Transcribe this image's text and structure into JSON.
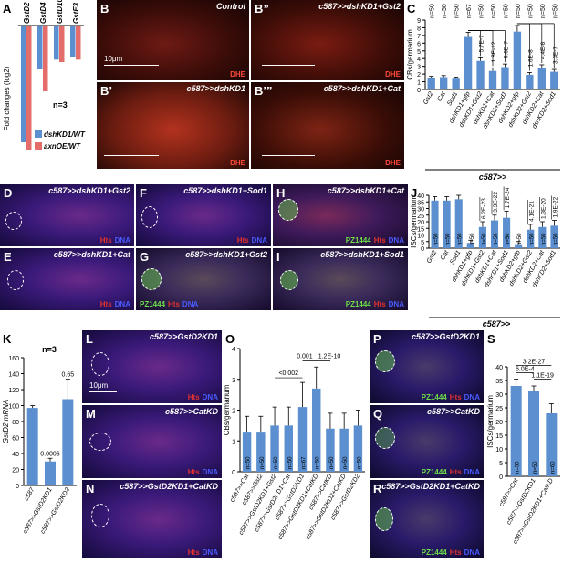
{
  "panel_letters": {
    "A": "A",
    "B": "B",
    "B2": "B’",
    "B3": "B”",
    "B4": "B’”",
    "C": "C",
    "D": "D",
    "E": "E",
    "F": "F",
    "G": "G",
    "H": "H",
    "I": "I",
    "J": "J",
    "K": "K",
    "L": "L",
    "M": "M",
    "N": "N",
    "O": "O",
    "P": "P",
    "Q": "Q",
    "R": "R",
    "S": "S"
  },
  "stain_labels": {
    "dhe": "DHE",
    "hts": "Hts",
    "dna": "DNA",
    "pz": "PZ1444"
  },
  "scale_bar": "10μm",
  "micrographs": {
    "B": "Control",
    "B2": "c587>>dshKD1",
    "B3": "c587>>dshKD1+Gst2",
    "B4": "c587>>dshKD1+Cat",
    "D": "c587>>dshKD1+Gst2",
    "E": "c587>>dshKD1+Cat",
    "F": "c587>>dshKD1+Sod1",
    "G": "c587>>dshKD1+Gst2",
    "H": "c587>>dshKD1+Cat",
    "I": "c587>>dshKD1+Sod1",
    "L": "c587>>GstD2KD1",
    "M": "c587>>CatKD",
    "N": "c587>>GstD2KD1+CatKD",
    "P": "c587>>GstD2KD1",
    "Q": "c587>>CatKD",
    "R": "c587>>GstD2KD1+CatKD"
  },
  "colors": {
    "blue_bar": "#5b8fcf",
    "red_bar": "#e46c6a",
    "hts_red": "#e03030",
    "dna_blue": "#4a5bff",
    "pz_green": "#6dde4a"
  },
  "chart_data": [
    {
      "id": "A",
      "type": "bar",
      "categories": [
        "GstD2",
        "GstD4",
        "GstD10",
        "GstE3"
      ],
      "series": [
        {
          "name": "dshKD1/WT",
          "values": [
            -4.8,
            -1.8,
            -1.4,
            -1.3
          ]
        },
        {
          "name": "axnOE/WT",
          "values": [
            -5.1,
            -2.7,
            -1.5,
            -1.4
          ]
        }
      ],
      "ylabel": "Fold changes (log2)",
      "ylim": [
        -6,
        0
      ],
      "annotation": "n=3",
      "legend": "bottom-right"
    },
    {
      "id": "C",
      "type": "bar",
      "categories": [
        "Gst2",
        "Cat",
        "Sod1",
        "dshKD1+gfp",
        "dshKD1+Gst2",
        "dshKD1+Cat",
        "dshKD1+Sod1",
        "dshKD2+gfp",
        "dshKD2+Gst2",
        "dshKD2+Cat",
        "dshKD2+Sod1"
      ],
      "values": [
        1.5,
        1.6,
        1.4,
        6.8,
        3.7,
        2.4,
        2.9,
        7.5,
        1.9,
        2.8,
        2.3
      ],
      "errors": [
        0.2,
        0.2,
        0.2,
        0.6,
        0.4,
        0.4,
        0.4,
        0.8,
        0.3,
        0.4,
        0.3
      ],
      "n_labels": [
        "n=50",
        "n=50",
        "n=50",
        "n=67",
        "n=50",
        "n=50",
        "n=50",
        "n=50",
        "n=50",
        "n=50",
        "n=50"
      ],
      "pvalues": [
        "5.7E-7",
        "1.8E-12",
        "5.6E-7",
        "1.6E-8",
        "4.4E-6",
        "3.3E-7"
      ],
      "ylabel": "CBs/germarium",
      "xlabel": "c587>>",
      "ylim": [
        0,
        9
      ],
      "yticks": [
        "0",
        "1",
        "2",
        "3",
        "4",
        "5",
        "6",
        "7",
        "8",
        "9"
      ]
    },
    {
      "id": "J",
      "type": "bar",
      "categories": [
        "Gst2",
        "Cat",
        "Sod1",
        "dshKD1+gfp",
        "dshKD1+Gst2",
        "dshKD1+Cat",
        "dshKD1+Sod1",
        "dshKD2+gfp",
        "dshKD2+Gst2",
        "dshKD2+Cat",
        "dshKD2+Sod1"
      ],
      "values": [
        36,
        36,
        37,
        4,
        16,
        21,
        23,
        3,
        14,
        16,
        17
      ],
      "errors": [
        3,
        3,
        3,
        2,
        4,
        4,
        5,
        2,
        4,
        4,
        4
      ],
      "n_labels": [
        "n=50",
        "n=50",
        "n=50",
        "n=50",
        "n=50",
        "n=50",
        "n=50",
        "n=50",
        "n=50",
        "n=50",
        "n=50"
      ],
      "pvalues": [
        "6.2E-23",
        "3.3E-22",
        "1.7E-24",
        "4.1E-21",
        "1.3E-20",
        "1.9E-22"
      ],
      "ylabel": "ISCs/germarium",
      "xlabel": "c587>>",
      "ylim": [
        0,
        40
      ],
      "yticks": [
        "0",
        "5",
        "10",
        "15",
        "20",
        "25",
        "30",
        "35",
        "40"
      ]
    },
    {
      "id": "K",
      "type": "bar",
      "categories": [
        "c587",
        "c587>>GstD2KD1",
        "c587>>GstD2KD2"
      ],
      "values": [
        97,
        30,
        108
      ],
      "errors": [
        3,
        4,
        25
      ],
      "bar_labels": [
        "",
        "0.0006",
        "0.65"
      ],
      "ylabel": "GstD2 mRNA",
      "annotation": "n=3",
      "ylim": [
        0,
        160
      ],
      "yticks": [
        "0",
        "20",
        "40",
        "60",
        "80",
        "100",
        "120",
        "140",
        "160"
      ]
    },
    {
      "id": "O",
      "type": "bar",
      "categories": [
        "c587>>Cat",
        "c587>>Gst2",
        "c587>>GstD2KD1+Gst2",
        "c587>>GstD2KD1+Cat",
        "c587>>GstD2KD1",
        "c587>>GstD2KD1+CatKD",
        "c587>>CatKD",
        "c587>>GstD2KD2+CatKD",
        "c587>>GstD2KD2"
      ],
      "values": [
        1.3,
        1.3,
        1.5,
        1.5,
        2.1,
        2.7,
        1.4,
        1.4,
        1.5
      ],
      "errors": [
        0.5,
        0.5,
        0.6,
        0.6,
        0.8,
        0.7,
        0.5,
        0.5,
        0.5
      ],
      "n_labels": [
        "n=50",
        "n=50",
        "n=50",
        "n=50",
        "n=67",
        "n=50",
        "n=50",
        "n=50",
        "n=50"
      ],
      "pvalues": [
        "<0.002",
        "0.001",
        "1.2E-10"
      ],
      "ylabel": "CBs/germarium",
      "ylim": [
        0,
        4
      ],
      "yticks": [
        "0",
        "1",
        "2",
        "3",
        "4"
      ]
    },
    {
      "id": "S",
      "type": "bar",
      "categories": [
        "c587>>Cat",
        "c587>>GstD2KD1",
        "c587>>GstD2KD1+CatKD"
      ],
      "values": [
        33,
        31,
        23
      ],
      "errors": [
        2.5,
        2,
        3.5
      ],
      "n_labels": [
        "n=50",
        "n=50",
        "n=60"
      ],
      "pvalues": [
        "3.2E-27",
        "6.0E-4",
        "1.1E-19"
      ],
      "ylabel": "ISCs/germarium",
      "ylim": [
        0,
        40
      ],
      "yticks": [
        "0",
        "5",
        "10",
        "15",
        "20",
        "25",
        "30",
        "35",
        "40"
      ]
    }
  ]
}
